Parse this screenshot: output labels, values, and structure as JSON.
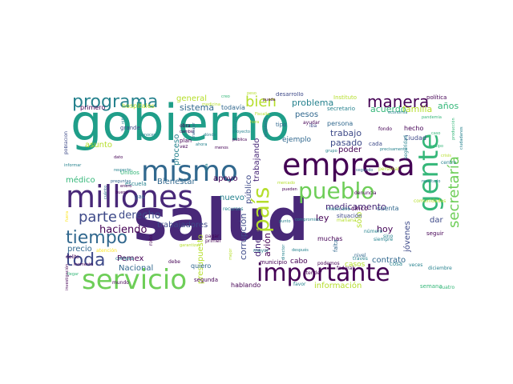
{
  "palette": {
    "dark_purple": "#440154",
    "deep_purple": "#482878",
    "indigo": "#3e4a89",
    "blue": "#31688e",
    "teal_blue": "#26828e",
    "teal": "#1f9e89",
    "green": "#35b779",
    "lime": "#6ece58",
    "yellow_green": "#b5de2b",
    "yellow": "#fde725"
  },
  "words": [
    {
      "text": "salud",
      "color": "#482878"
    },
    {
      "text": "gobierno",
      "color": "#1f9e89"
    },
    {
      "text": "millones",
      "color": "#482878"
    },
    {
      "text": "mismo",
      "color": "#31688e"
    },
    {
      "text": "empresa",
      "color": "#440154"
    },
    {
      "text": "gente",
      "color": "#35b779"
    },
    {
      "text": "servicio",
      "color": "#6ece58"
    },
    {
      "text": "importante",
      "color": "#440154"
    },
    {
      "text": "país",
      "color": "#b5de2b"
    },
    {
      "text": "pueblo",
      "color": "#6ece58"
    },
    {
      "text": "secretaría",
      "color": "#6ece58"
    },
    {
      "text": "programa",
      "color": "#26828e"
    },
    {
      "text": "manera",
      "color": "#440154"
    },
    {
      "text": "bien",
      "color": "#b5de2b"
    },
    {
      "text": "tiempo",
      "color": "#31688e"
    },
    {
      "text": "toda",
      "color": "#3e4a89"
    },
    {
      "text": "parte",
      "color": "#3e4a89"
    },
    {
      "text": "haciendo",
      "color": "#440154"
    },
    {
      "text": "derecho",
      "color": "#3e4a89"
    },
    {
      "text": "problema",
      "color": "#26828e"
    },
    {
      "text": "acuerdo",
      "color": "#35b779"
    },
    {
      "text": "familia",
      "color": "#b5de2b"
    },
    {
      "text": "años",
      "color": "#35b779"
    },
    {
      "text": "sistema",
      "color": "#31688e"
    },
    {
      "text": "trabajo",
      "color": "#3e4a89"
    },
    {
      "text": "pasado",
      "color": "#3e4a89"
    },
    {
      "text": "poder",
      "color": "#440154"
    },
    {
      "text": "medicamento",
      "color": "#482878"
    },
    {
      "text": "ejemplo",
      "color": "#31688e"
    },
    {
      "text": "corrupción",
      "color": "#3e4a89"
    },
    {
      "text": "dinero",
      "color": "#482878"
    },
    {
      "text": "avión",
      "color": "#440154"
    },
    {
      "text": "público",
      "color": "#3e4a89"
    },
    {
      "text": "trabajadores",
      "color": "#3e4a89"
    },
    {
      "text": "Bienestar",
      "color": "#31688e"
    },
    {
      "text": "apoyo",
      "color": "#440154"
    },
    {
      "text": "presupuesto",
      "color": "#b5de2b"
    },
    {
      "text": "información",
      "color": "#b5de2b"
    },
    {
      "text": "contrato",
      "color": "#31688e"
    },
    {
      "text": "cabo",
      "color": "#440154"
    },
    {
      "text": "Nacional",
      "color": "#31688e"
    },
    {
      "text": "Pemex",
      "color": "#440154"
    },
    {
      "text": "precio",
      "color": "#31688e"
    },
    {
      "text": "hoy",
      "color": "#440154"
    },
    {
      "text": "ley",
      "color": "#440154"
    },
    {
      "text": "sólo",
      "color": "#b5de2b"
    },
    {
      "text": "jóvenes",
      "color": "#3e4a89"
    },
    {
      "text": "casos",
      "color": "#b5de2b"
    },
    {
      "text": "dar",
      "color": "#3e4a89"
    },
    {
      "text": "nuevo",
      "color": "#26828e"
    },
    {
      "text": "general",
      "color": "#b5de2b"
    },
    {
      "text": "médico",
      "color": "#35b779"
    },
    {
      "text": "asunto",
      "color": "#b5de2b"
    },
    {
      "text": "proceso",
      "color": "#26828e"
    },
    {
      "text": "trabajando",
      "color": "#482878"
    },
    {
      "text": "pesos",
      "color": "#31688e"
    },
    {
      "text": "persona",
      "color": "#31688e"
    },
    {
      "text": "secretario",
      "color": "#26828e"
    },
    {
      "text": "Instituto",
      "color": "#b5de2b"
    },
    {
      "text": "desarrollo",
      "color": "#3e4a89"
    },
    {
      "text": "política",
      "color": "#440154"
    },
    {
      "text": "hecho",
      "color": "#440154"
    },
    {
      "text": "Ciudad",
      "color": "#3e4a89"
    },
    {
      "text": "cada",
      "color": "#3e4a89"
    },
    {
      "text": "tipo",
      "color": "#31688e"
    },
    {
      "text": "cinco",
      "color": "#440154"
    },
    {
      "text": "cuenta",
      "color": "#31688e"
    },
    {
      "text": "seguir",
      "color": "#440154"
    },
    {
      "text": "muchas",
      "color": "#440154"
    },
    {
      "text": "falta",
      "color": "#31688e"
    },
    {
      "text": "situación",
      "color": "#3e4a89"
    },
    {
      "text": "quiero",
      "color": "#31688e"
    },
    {
      "text": "hablando",
      "color": "#440154"
    },
    {
      "text": "segunda",
      "color": "#440154"
    },
    {
      "text": "cosa",
      "color": "#26828e"
    },
    {
      "text": "semana",
      "color": "#35b779"
    },
    {
      "text": "favor",
      "color": "#26828e"
    },
    {
      "text": "podemos",
      "color": "#440154"
    },
    {
      "text": "municipio",
      "color": "#440154"
    },
    {
      "text": "primero",
      "color": "#440154"
    },
    {
      "text": "hospitales",
      "color": "#b5de2b"
    },
    {
      "text": "todavía",
      "color": "#31688e"
    },
    {
      "text": "población",
      "color": "#3e4a89"
    },
    {
      "text": "grande",
      "color": "#3e4a89"
    },
    {
      "text": "Unidos",
      "color": "#35b779"
    },
    {
      "text": "escuela",
      "color": "#26828e"
    },
    {
      "text": "obra",
      "color": "#440154"
    },
    {
      "text": "plan",
      "color": "#440154"
    },
    {
      "text": "vez",
      "color": "#440154"
    },
    {
      "text": "ayudar",
      "color": "#440154"
    },
    {
      "text": "iba",
      "color": "#3e4a89"
    },
    {
      "text": "fondo",
      "color": "#440154"
    },
    {
      "text": "mayor",
      "color": "#26828e"
    },
    {
      "text": "atender",
      "color": "#440154"
    },
    {
      "text": "federal",
      "color": "#440154"
    },
    {
      "text": "través",
      "color": "#26828e"
    },
    {
      "text": "veces",
      "color": "#26828e"
    },
    {
      "text": "cuatro",
      "color": "#35b779"
    },
    {
      "text": "mundo",
      "color": "#440154"
    },
    {
      "text": "compra",
      "color": "#26828e"
    },
    {
      "text": "delito",
      "color": "#440154"
    },
    {
      "text": "gas",
      "color": "#31688e"
    },
    {
      "text": "atención",
      "color": "#fde725"
    },
    {
      "text": "momento",
      "color": "#440154"
    },
    {
      "text": "debe",
      "color": "#440154"
    },
    {
      "text": "pagar",
      "color": "#440154"
    },
    {
      "text": "primer",
      "color": "#440154"
    },
    {
      "text": "robo",
      "color": "#440154"
    },
    {
      "text": "recursos",
      "color": "#26828e"
    },
    {
      "text": "punto",
      "color": "#26828e"
    },
    {
      "text": "mexicano",
      "color": "#26828e"
    },
    {
      "text": "nivel",
      "color": "#31688e"
    },
    {
      "text": "denuncia",
      "color": "#440154"
    },
    {
      "text": "resultado",
      "color": "#26828e"
    },
    {
      "text": "diciembre",
      "color": "#26828e"
    },
    {
      "text": "centro",
      "color": "#26828e"
    },
    {
      "text": "comunidades",
      "color": "#b5de2b"
    },
    {
      "text": "siempre",
      "color": "#26828e"
    },
    {
      "text": "número",
      "color": "#26828e"
    },
    {
      "text": "sino",
      "color": "#26828e"
    },
    {
      "text": "mañana",
      "color": "#b5de2b"
    },
    {
      "text": "personal",
      "color": "#b5de2b"
    },
    {
      "text": "grupo",
      "color": "#26828e"
    },
    {
      "text": "seguridad",
      "color": "#26828e"
    },
    {
      "text": "producción",
      "color": "#35b779"
    },
    {
      "text": "equipo",
      "color": "#35b779"
    },
    {
      "text": "caso",
      "color": "#35b779"
    },
    {
      "text": "crisis",
      "color": "#b5de2b"
    },
    {
      "text": "pandemia",
      "color": "#35b779"
    },
    {
      "text": "economía",
      "color": "#26828e"
    },
    {
      "text": "propósito",
      "color": "#31688e"
    },
    {
      "text": "proyecto",
      "color": "#26828e"
    },
    {
      "text": "pública",
      "color": "#440154"
    },
    {
      "text": "menos",
      "color": "#440154"
    },
    {
      "text": "respecto",
      "color": "#26828e"
    },
    {
      "text": "conocer",
      "color": "#26828e"
    },
    {
      "text": "cambio",
      "color": "#440154"
    },
    {
      "text": "dato",
      "color": "#440154"
    },
    {
      "text": "enero",
      "color": "#440154"
    },
    {
      "text": "buena",
      "color": "#440154"
    },
    {
      "text": "preguntas",
      "color": "#31688e"
    },
    {
      "text": "cuánto",
      "color": "#31688e"
    },
    {
      "text": "vida",
      "color": "#26828e"
    },
    {
      "text": "ahora",
      "color": "#26828e"
    },
    {
      "text": "dónde",
      "color": "#26828e"
    },
    {
      "text": "informar",
      "color": "#26828e"
    },
    {
      "text": "niño",
      "color": "#26828e"
    },
    {
      "text": "medicina",
      "color": "#b5de2b"
    },
    {
      "text": "creo",
      "color": "#35b779"
    },
    {
      "text": "pueda",
      "color": "#440154"
    },
    {
      "text": "mercado",
      "color": "#b5de2b"
    },
    {
      "text": "garantizar",
      "color": "#b5de2b"
    },
    {
      "text": "después",
      "color": "#26828e"
    },
    {
      "text": "director",
      "color": "#26828e"
    },
    {
      "text": "investigación",
      "color": "#440154"
    },
    {
      "text": "fuera",
      "color": "#fde725"
    },
    {
      "text": "llegar",
      "color": "#35b779"
    },
    {
      "text": "pueden",
      "color": "#440154"
    },
    {
      "text": "mejor",
      "color": "#b5de2b"
    },
    {
      "text": "compromiso",
      "color": "#26828e"
    },
    {
      "text": "informe",
      "color": "#26828e"
    },
    {
      "text": "trabajar",
      "color": "#31688e"
    },
    {
      "text": "precisamente",
      "color": "#26828e"
    },
    {
      "text": "ciudadanos",
      "color": "#26828e"
    },
    {
      "text": "segundo",
      "color": "#31688e"
    },
    {
      "text": "Fiscalía",
      "color": "#b5de2b"
    },
    {
      "text": "peso",
      "color": "#b5de2b"
    },
    {
      "text": "hora",
      "color": "#b5de2b"
    },
    {
      "text": "hacer",
      "color": "#26828e"
    }
  ]
}
